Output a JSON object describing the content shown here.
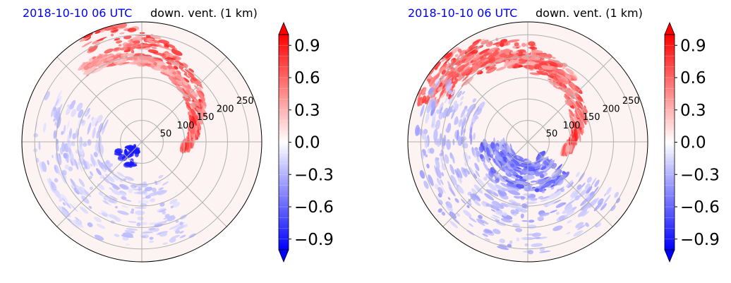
{
  "chart_data": [
    {
      "type": "heatmap",
      "projection": "polar",
      "time_label": "2018-10-10 06 UTC",
      "title": "down. vent. (1 km)",
      "title_color": "#0000ff",
      "radial_tick_labels": [
        "50",
        "100",
        "150",
        "200",
        "250"
      ],
      "radial_ticks": [
        50,
        100,
        150,
        200,
        250
      ],
      "rlim": [
        0,
        280
      ],
      "angular_grid_deg": [
        0,
        45,
        90,
        135,
        180,
        225,
        270,
        315
      ],
      "grid": true,
      "colorbar": {
        "ticks": [
          -0.9,
          -0.6,
          -0.3,
          0.0,
          0.3,
          0.6,
          0.9
        ],
        "tick_labels": [
          "−0.9",
          "−0.6",
          "−0.3",
          "0.0",
          "0.3",
          "0.6",
          "0.9"
        ],
        "range": [
          -1.0,
          1.0
        ],
        "colormap": "bwr",
        "extend": "both"
      },
      "features": [
        {
          "kind": "positive_band",
          "theta_start_deg": -10,
          "theta_end_deg": 120,
          "r_start": 70,
          "r_end": 260,
          "value": 0.9
        },
        {
          "kind": "positive_band",
          "theta_start_deg": 40,
          "theta_end_deg": 130,
          "r_start": 150,
          "r_end": 215,
          "value": 0.6
        },
        {
          "kind": "negative_blob",
          "theta_deg": 225,
          "r": 45,
          "value": -0.9
        },
        {
          "kind": "negative_band",
          "theta_start_deg": 150,
          "theta_end_deg": 300,
          "r_start": 90,
          "r_end": 250,
          "value": -0.3
        }
      ]
    },
    {
      "type": "heatmap",
      "projection": "polar",
      "time_label": "2018-10-10 06 UTC",
      "title": "down. vent. (1 km)",
      "title_color": "#0000ff",
      "radial_tick_labels": [
        "50",
        "100",
        "150",
        "200",
        "250"
      ],
      "radial_ticks": [
        50,
        100,
        150,
        200,
        250
      ],
      "rlim": [
        0,
        280
      ],
      "angular_grid_deg": [
        0,
        45,
        90,
        135,
        180,
        225,
        270,
        315
      ],
      "grid": true,
      "colorbar": {
        "ticks": [
          -0.9,
          -0.6,
          -0.3,
          0.0,
          0.3,
          0.6,
          0.9
        ],
        "tick_labels": [
          "−0.9",
          "−0.6",
          "−0.3",
          "0.0",
          "0.3",
          "0.6",
          "0.9"
        ],
        "range": [
          -1.0,
          1.0
        ],
        "colormap": "bwr",
        "extend": "both"
      },
      "features": [
        {
          "kind": "positive_band",
          "theta_start_deg": -15,
          "theta_end_deg": 150,
          "r_start": 60,
          "r_end": 260,
          "value": 0.9
        },
        {
          "kind": "positive_band",
          "theta_start_deg": 60,
          "theta_end_deg": 160,
          "r_start": 150,
          "r_end": 260,
          "value": 0.8
        },
        {
          "kind": "negative_band",
          "theta_start_deg": 180,
          "theta_end_deg": 320,
          "r_start": 40,
          "r_end": 120,
          "value": -0.7
        },
        {
          "kind": "negative_band",
          "theta_start_deg": 140,
          "theta_end_deg": 330,
          "r_start": 120,
          "r_end": 260,
          "value": -0.4
        }
      ]
    }
  ]
}
